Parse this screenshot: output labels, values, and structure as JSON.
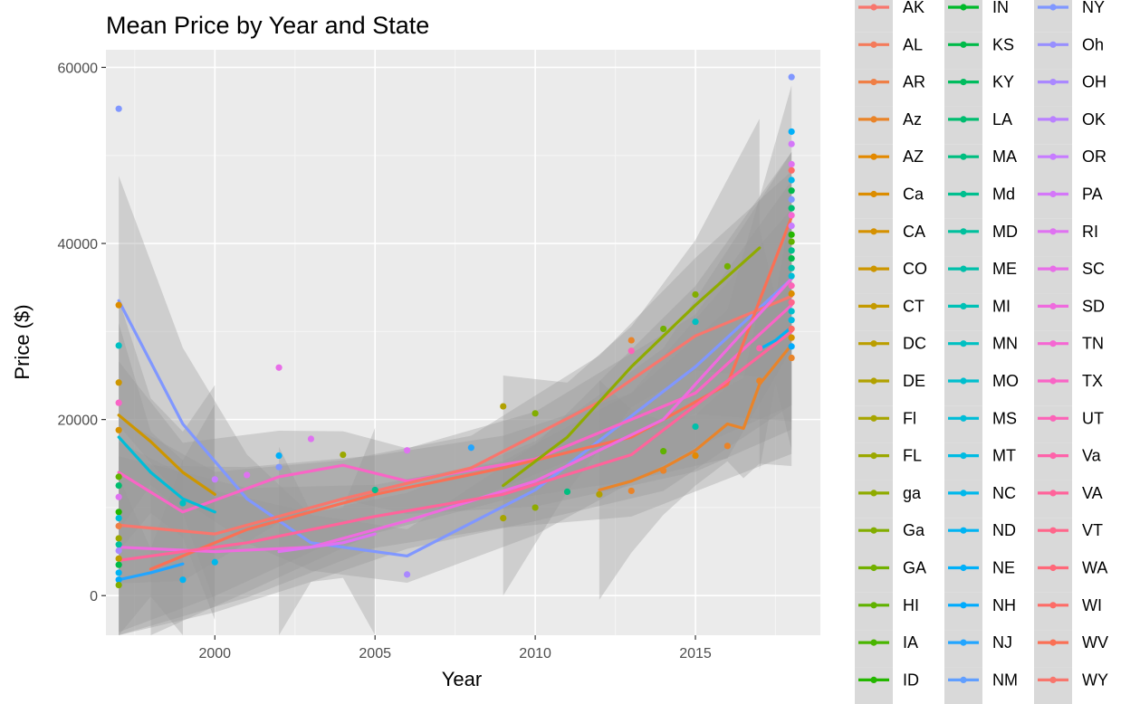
{
  "chart_data": {
    "type": "scatter",
    "title": "Mean Price by Year and State",
    "xlabel": "Year",
    "ylabel": "Price ($)",
    "xlim": [
      1996.6,
      2018.9
    ],
    "ylim": [
      -4500,
      62000
    ],
    "x_ticks": [
      2000,
      2005,
      2010,
      2015
    ],
    "y_ticks": [
      0,
      20000,
      40000,
      60000
    ],
    "y_tick_labels": [
      "0",
      "20000",
      "40000",
      "60000"
    ],
    "grid": true,
    "legend_placement": "right",
    "legend_entries": [
      "AK",
      "AL",
      "AR",
      "Az",
      "AZ",
      "Ca",
      "CA",
      "CO",
      "CT",
      "DC",
      "DE",
      "Fl",
      "FL",
      "ga",
      "Ga",
      "GA",
      "HI",
      "IA",
      "ID",
      "IN",
      "KS",
      "KY",
      "LA",
      "MA",
      "Md",
      "MD",
      "ME",
      "MI",
      "MN",
      "MO",
      "MS",
      "MT",
      "NC",
      "ND",
      "NE",
      "NH",
      "NJ",
      "NM",
      "NY",
      "Oh",
      "OH",
      "OK",
      "OR",
      "PA",
      "RI",
      "SC",
      "SD",
      "TN",
      "TX",
      "UT",
      "Va",
      "VA",
      "VT",
      "WA",
      "WI",
      "WV",
      "WY"
    ],
    "legend_colors": [
      "#F8766D",
      "#F47B5B",
      "#EF7F46",
      "#E98429",
      "#E38900",
      "#DC8D00",
      "#D59100",
      "#CD9600",
      "#C49A00",
      "#BB9E00",
      "#B1A100",
      "#A7A500",
      "#9BA800",
      "#8FAB00",
      "#82AD00",
      "#72B000",
      "#60B200",
      "#49B500",
      "#24B700",
      "#00B92A",
      "#00BA49",
      "#00BC5E",
      "#00BD70",
      "#00BE80",
      "#00BF8F",
      "#00C09D",
      "#00C0AA",
      "#00C1B6",
      "#00C0C2",
      "#00BFCE",
      "#00BDD8",
      "#00BBE2",
      "#00B8EB",
      "#00B4F3",
      "#00B0F9",
      "#00ABFD",
      "#22A5FF",
      "#619FFF",
      "#8097FF",
      "#978FFF",
      "#AA88FF",
      "#BA81FF",
      "#C77CFF",
      "#D477F9",
      "#DF72F1",
      "#E86EE8",
      "#EF6BDE",
      "#F567D3",
      "#F965C6",
      "#FC63B8",
      "#FE63AA",
      "#FF649B",
      "#FF668B",
      "#FF6879",
      "#FD6C67",
      "#FA7055",
      "#F8766D"
    ],
    "points": [
      [
        1997,
        55300,
        38
      ],
      [
        1997,
        33000,
        5
      ],
      [
        1997,
        28400,
        28
      ],
      [
        1997,
        24200,
        7
      ],
      [
        1997,
        21900,
        48
      ],
      [
        1997,
        18800,
        6
      ],
      [
        1997,
        13500,
        16
      ],
      [
        1997,
        12500,
        22
      ],
      [
        1997,
        11200,
        44
      ],
      [
        1997,
        9500,
        18
      ],
      [
        1997,
        8800,
        30
      ],
      [
        1997,
        7900,
        2
      ],
      [
        1997,
        6500,
        12
      ],
      [
        1997,
        5800,
        25
      ],
      [
        1997,
        5100,
        40
      ],
      [
        1997,
        4200,
        9
      ],
      [
        1997,
        3500,
        20
      ],
      [
        1997,
        2600,
        33
      ],
      [
        1997,
        1800,
        35
      ],
      [
        1997,
        1200,
        14
      ],
      [
        1999,
        1800,
        33
      ],
      [
        1999,
        10500,
        28
      ],
      [
        2000,
        3800,
        32
      ],
      [
        2000,
        13200,
        42
      ],
      [
        2001,
        13700,
        44
      ],
      [
        2002,
        25900,
        45
      ],
      [
        2002,
        15900,
        34
      ],
      [
        2002,
        14600,
        38
      ],
      [
        2003,
        17800,
        44
      ],
      [
        2004,
        16000,
        12
      ],
      [
        2005,
        12000,
        24
      ],
      [
        2006,
        16500,
        44
      ],
      [
        2006,
        2400,
        40
      ],
      [
        2008,
        16800,
        36
      ],
      [
        2009,
        21500,
        10
      ],
      [
        2009,
        8800,
        11
      ],
      [
        2010,
        20700,
        14
      ],
      [
        2010,
        10000,
        13
      ],
      [
        2011,
        11800,
        23
      ],
      [
        2012,
        11500,
        10
      ],
      [
        2013,
        29000,
        3
      ],
      [
        2013,
        27800,
        49
      ],
      [
        2013,
        11900,
        3
      ],
      [
        2014,
        30300,
        15
      ],
      [
        2014,
        16400,
        16
      ],
      [
        2014,
        14200,
        3
      ],
      [
        2015,
        34200,
        14
      ],
      [
        2015,
        31100,
        28
      ],
      [
        2015,
        19200,
        26
      ],
      [
        2015,
        15900,
        4
      ],
      [
        2016,
        37400,
        15
      ],
      [
        2016,
        17000,
        3
      ],
      [
        2017,
        24400,
        3
      ],
      [
        2017,
        28100,
        50
      ],
      [
        2018,
        58900,
        38
      ],
      [
        2018,
        52700,
        34
      ],
      [
        2018,
        51300,
        43
      ],
      [
        2018,
        49000,
        44
      ],
      [
        2018,
        48300,
        54
      ],
      [
        2018,
        47200,
        32
      ],
      [
        2018,
        46000,
        20
      ],
      [
        2018,
        45000,
        38
      ],
      [
        2018,
        44000,
        22
      ],
      [
        2018,
        43200,
        47
      ],
      [
        2018,
        42000,
        42
      ],
      [
        2018,
        41000,
        18
      ],
      [
        2018,
        40200,
        16
      ],
      [
        2018,
        39200,
        24
      ],
      [
        2018,
        38300,
        20
      ],
      [
        2018,
        37200,
        26
      ],
      [
        2018,
        36300,
        30
      ],
      [
        2018,
        35200,
        49
      ],
      [
        2018,
        34300,
        5
      ],
      [
        2018,
        33300,
        52
      ],
      [
        2018,
        32300,
        29
      ],
      [
        2018,
        31300,
        31
      ],
      [
        2018,
        30300,
        54
      ],
      [
        2018,
        29300,
        6
      ],
      [
        2018,
        28300,
        35
      ],
      [
        2018,
        27000,
        3
      ]
    ],
    "smooth_lines": [
      {
        "color_index": 38,
        "x": [
          1997,
          1999,
          2001,
          2003,
          2006,
          2010,
          2015,
          2018
        ],
        "y": [
          33500,
          19500,
          11000,
          6000,
          4500,
          12000,
          26000,
          36000
        ]
      },
      {
        "color_index": 48,
        "x": [
          1997,
          1999,
          2002,
          2004,
          2006,
          2010,
          2015,
          2018
        ],
        "y": [
          14000,
          9500,
          13500,
          14800,
          13000,
          15500,
          23000,
          33000
        ]
      },
      {
        "color_index": 0,
        "x": [
          1997,
          2000,
          2004,
          2008,
          2012,
          2015,
          2018
        ],
        "y": [
          8000,
          7000,
          11000,
          14500,
          22000,
          29500,
          34000
        ]
      },
      {
        "color_index": 55,
        "x": [
          1998,
          2001,
          2005,
          2009,
          2013,
          2016,
          2018
        ],
        "y": [
          3000,
          7500,
          11500,
          14500,
          18000,
          24000,
          43000
        ]
      },
      {
        "color_index": 46,
        "x": [
          1997,
          2000,
          2003,
          2006,
          2010,
          2014,
          2018
        ],
        "y": [
          5500,
          5000,
          5500,
          8500,
          13000,
          20000,
          36000
        ]
      },
      {
        "color_index": 51,
        "x": [
          1997,
          2001,
          2005,
          2009,
          2013,
          2018
        ],
        "y": [
          4000,
          6000,
          9000,
          11500,
          16000,
          30000
        ]
      },
      {
        "color_index": 13,
        "x": [
          2009,
          2011,
          2013,
          2015,
          2017
        ],
        "y": [
          12500,
          18000,
          26000,
          33000,
          39500
        ]
      },
      {
        "color_index": 3,
        "x": [
          2012,
          2013,
          2014,
          2015,
          2016,
          2016.5,
          2017,
          2018
        ],
        "y": [
          12000,
          13000,
          14500,
          16500,
          19500,
          19000,
          24000,
          28500
        ]
      },
      {
        "color_index": 7,
        "x": [
          1997,
          1998,
          1999,
          2000
        ],
        "y": [
          20500,
          17500,
          14000,
          11500
        ]
      },
      {
        "color_index": 30,
        "x": [
          1997,
          1998,
          1999,
          2000
        ],
        "y": [
          18000,
          14000,
          11000,
          9500
        ]
      },
      {
        "color_index": 44,
        "x": [
          2002,
          2003,
          2004,
          2005
        ],
        "y": [
          5000,
          5500,
          6000,
          7000
        ]
      },
      {
        "color_index": 33,
        "x": [
          2017,
          2017.5,
          2018
        ],
        "y": [
          28000,
          29000,
          30500
        ]
      },
      {
        "color_index": 36,
        "x": [
          1997,
          1998,
          1999
        ],
        "y": [
          1800,
          2600,
          3600
        ]
      }
    ]
  }
}
